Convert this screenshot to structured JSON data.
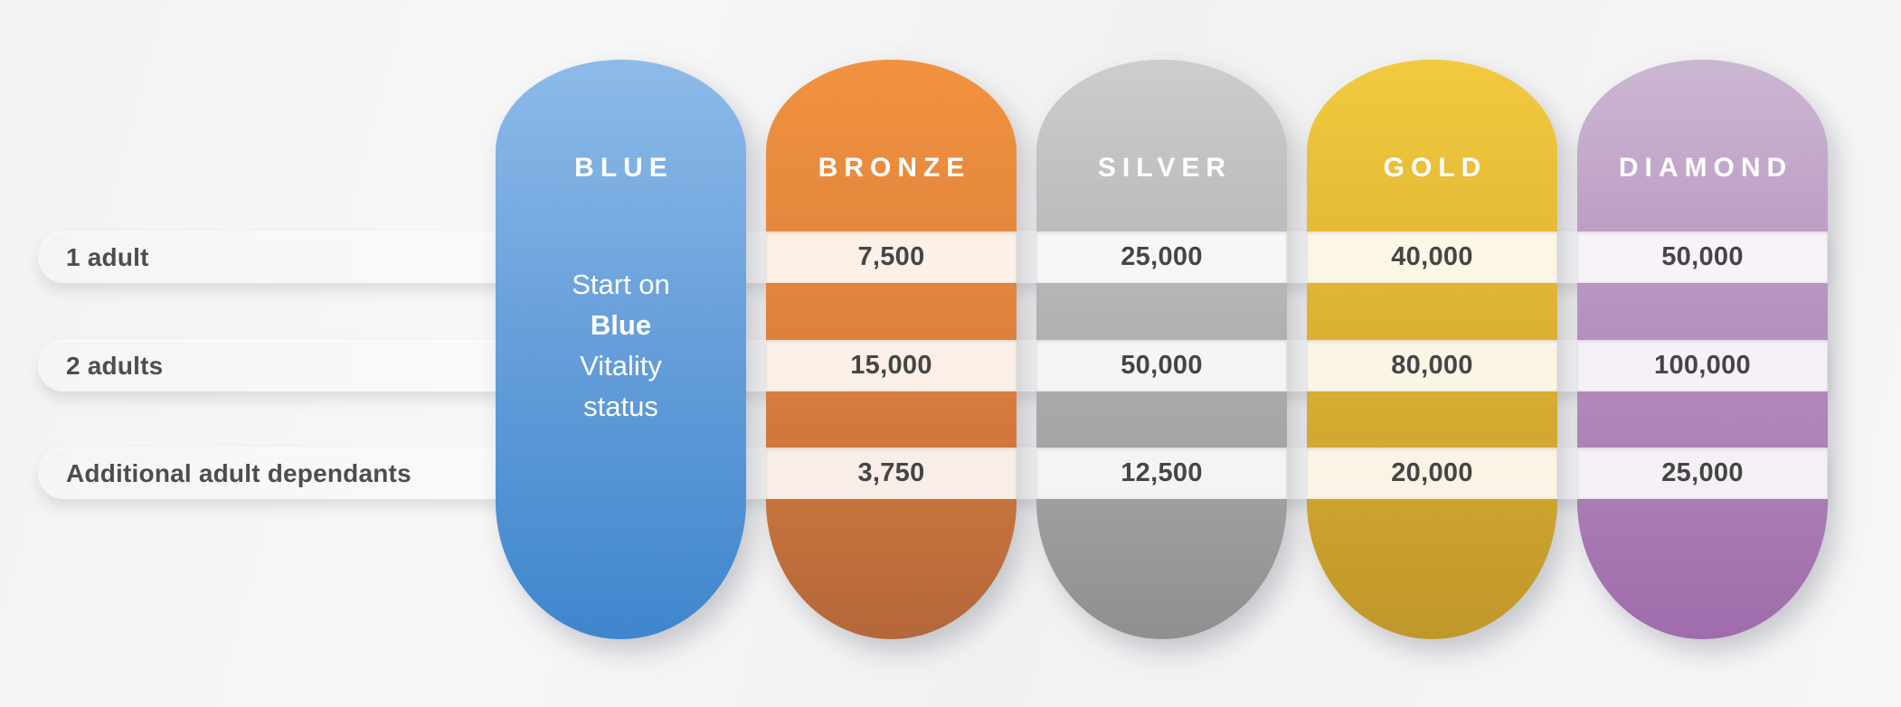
{
  "rows": [
    {
      "label": "1 adult"
    },
    {
      "label": "2 adults"
    },
    {
      "label": "Additional adult dependants"
    }
  ],
  "tiers": {
    "blue": {
      "name": "BLUE",
      "message": [
        "Start on",
        "Blue",
        "Vitality",
        "status"
      ],
      "color_top": "#8dbbe9",
      "color_mid": "#69a0db",
      "color_bottom": "#3e86cd"
    },
    "bronze": {
      "name": "BRONZE",
      "values": [
        "7,500",
        "15,000",
        "3,750"
      ],
      "color_top": "#f0923e",
      "color_mid": "#e0823e",
      "color_bottom": "#b4673a"
    },
    "silver": {
      "name": "SILVER",
      "values": [
        "25,000",
        "50,000",
        "12,500"
      ],
      "color_top": "#cdcdcd",
      "color_mid": "#b2b2b2",
      "color_bottom": "#8f8f8f"
    },
    "gold": {
      "name": "GOLD",
      "values": [
        "40,000",
        "80,000",
        "20,000"
      ],
      "color_top": "#f2ca3f",
      "color_mid": "#ddb233",
      "color_bottom": "#c0972a"
    },
    "diamond": {
      "name": "DIAMOND",
      "values": [
        "50,000",
        "100,000",
        "25,000"
      ],
      "color_top": "#cbb7d2",
      "color_mid": "#b691c0",
      "color_bottom": "#9f6cab"
    }
  },
  "chart_data": {
    "type": "table",
    "title": "",
    "columns": [
      "BLUE",
      "BRONZE",
      "SILVER",
      "GOLD",
      "DIAMOND"
    ],
    "row_labels": [
      "1 adult",
      "2 adults",
      "Additional adult dependants"
    ],
    "values": {
      "BLUE": [
        "Start on Blue Vitality status",
        "Start on Blue Vitality status",
        "Start on Blue Vitality status"
      ],
      "BRONZE": [
        7500,
        15000,
        3750
      ],
      "SILVER": [
        25000,
        50000,
        12500
      ],
      "GOLD": [
        40000,
        80000,
        20000
      ],
      "DIAMOND": [
        50000,
        100000,
        25000
      ]
    },
    "legend_position": "none",
    "grid": false
  }
}
